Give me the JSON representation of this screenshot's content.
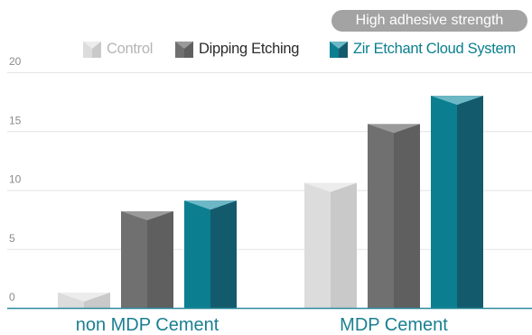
{
  "badge": "High adhesive strength",
  "chart_data": {
    "type": "bar",
    "categories": [
      "non MDP Cement",
      "MDP Cement"
    ],
    "series": [
      {
        "name": "Control",
        "values": [
          1.3,
          10.6
        ],
        "colors": {
          "light": "#dcdcdc",
          "dark": "#c9c9c9",
          "top": "#ececec"
        }
      },
      {
        "name": "Dipping Etching",
        "values": [
          8.2,
          15.6
        ],
        "colors": {
          "light": "#707070",
          "dark": "#5f5f5f",
          "top": "#9a9a9a"
        }
      },
      {
        "name": "Zir Etchant Cloud System",
        "values": [
          9.1,
          18.0
        ],
        "colors": {
          "light": "#0b7f8f",
          "dark": "#145a6d",
          "top": "#6cb8c6"
        }
      }
    ],
    "ylim": [
      0,
      20
    ],
    "yticks": [
      0,
      5,
      10,
      15,
      20
    ],
    "grid": true,
    "legend": "top-right",
    "legend_label_colors": [
      "#b5b5b5",
      "#2b2b2b",
      "#0b7f8f"
    ],
    "axis_color": "#2b8a99",
    "category_label_color": "#1a7f91"
  }
}
